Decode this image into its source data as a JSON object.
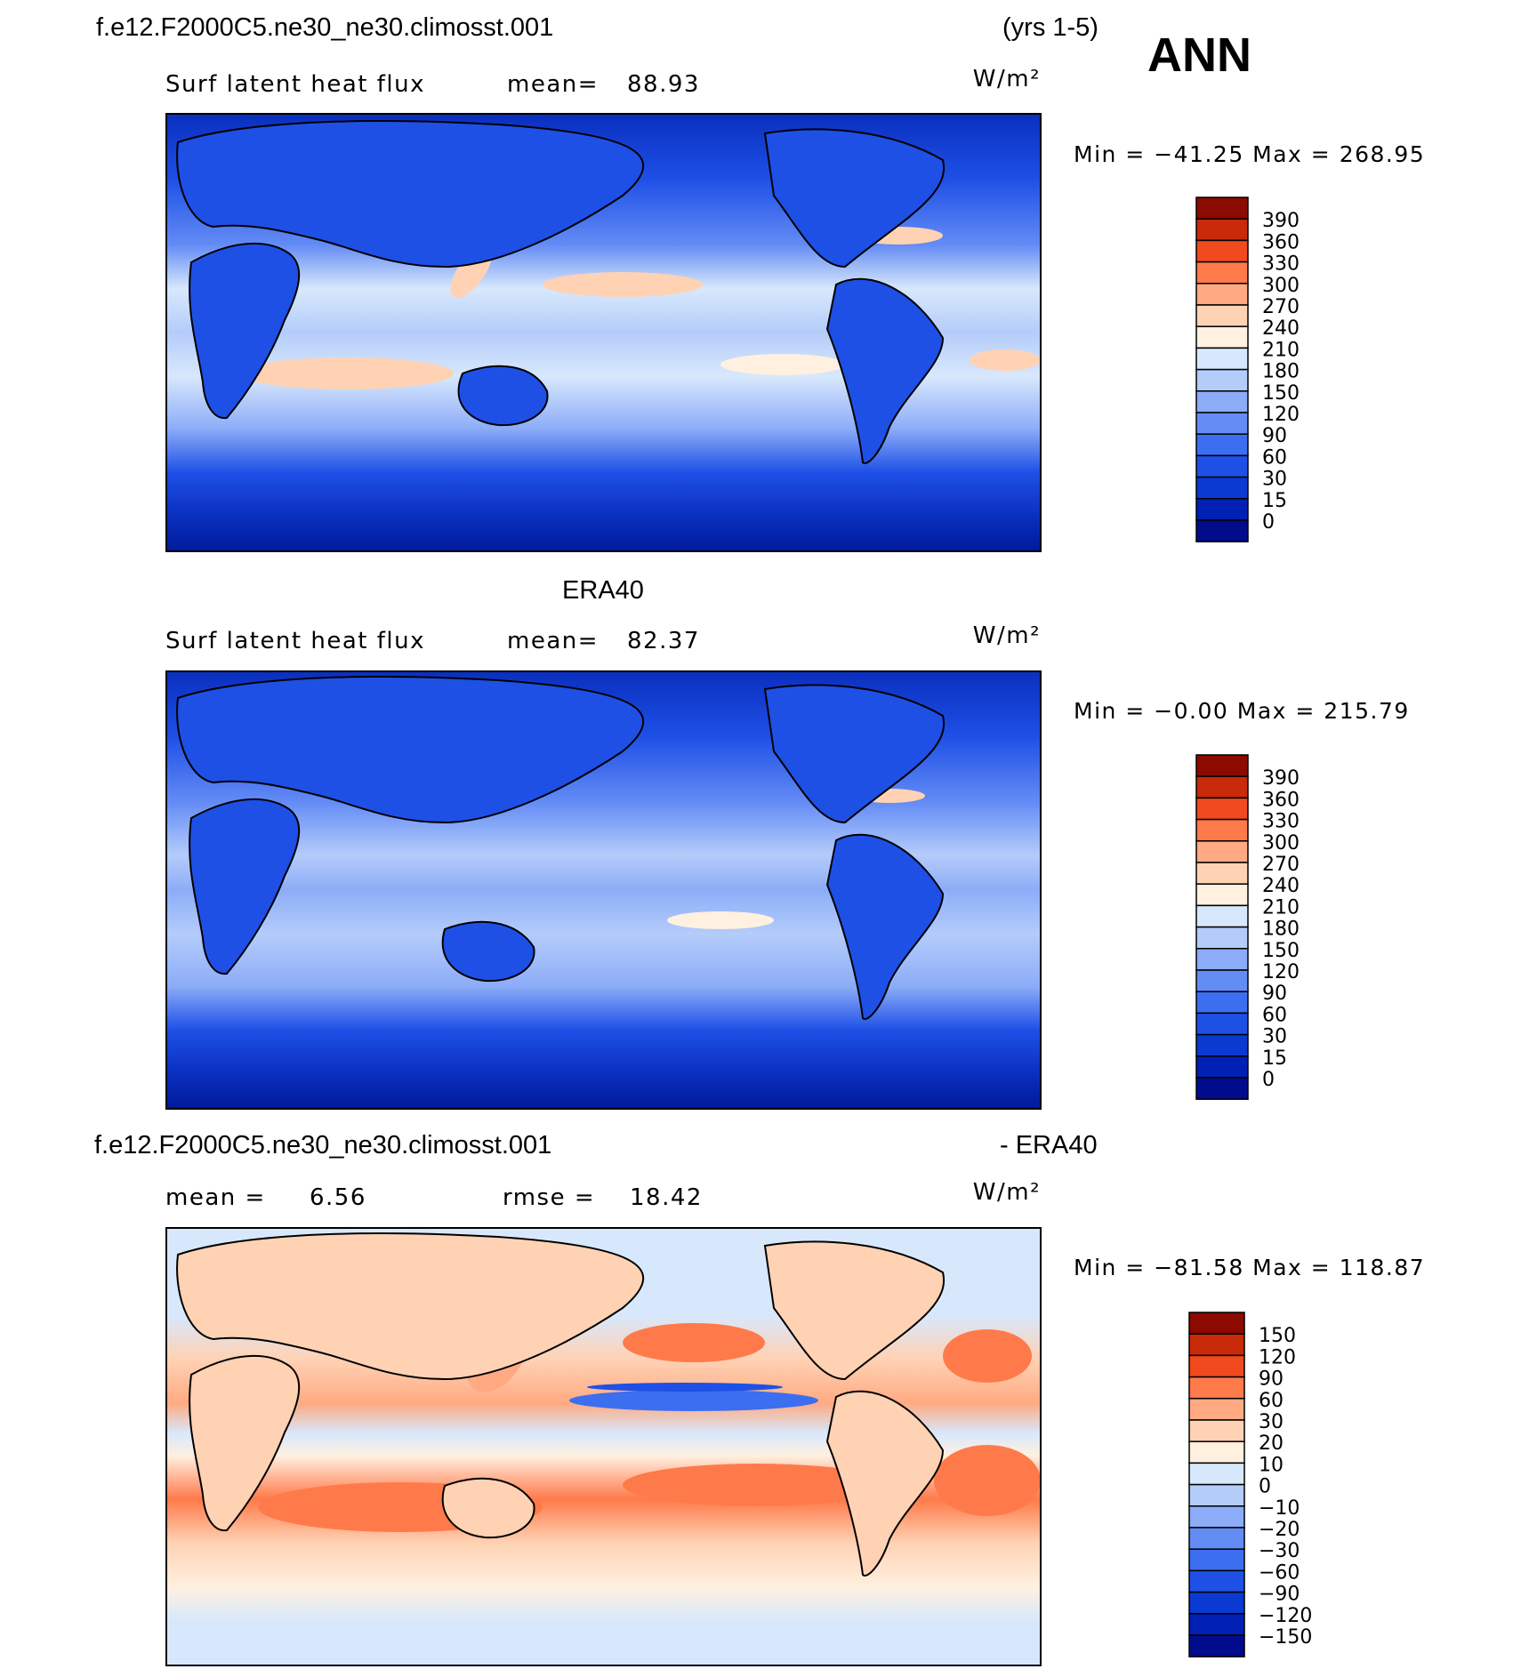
{
  "header": {
    "case_name": "f.e12.F2000C5.ne30_ne30.climosst.001",
    "years": "(yrs 1-5)",
    "season": "ANN"
  },
  "panels": [
    {
      "title_center": "",
      "left_label": "Surf latent heat flux",
      "stat1_label": "mean=",
      "stat1_value": "88.93",
      "stat2_label": "",
      "stat2_value": "",
      "units": "W/m²",
      "min_max": "Min = −41.25 Max = 268.95"
    },
    {
      "title_center": "ERA40",
      "left_label": "Surf latent heat flux",
      "stat1_label": "mean=",
      "stat1_value": "82.37",
      "stat2_label": "",
      "stat2_value": "",
      "units": "W/m²",
      "min_max": "Min =  −0.00 Max = 215.79"
    },
    {
      "title_left": "f.e12.F2000C5.ne30_ne30.climosst.001",
      "title_right": "- ERA40",
      "left_label": "",
      "stat1_label": "mean =",
      "stat1_value": "6.56",
      "stat2_label": "rmse =",
      "stat2_value": "18.42",
      "units": "W/m²",
      "min_max": "Min = −81.58 Max = 118.87"
    }
  ],
  "chart_data": [
    {
      "type": "heatmap",
      "field": "Surf latent heat flux",
      "mean": 88.93,
      "min": -41.25,
      "max": 268.95,
      "colorbar_levels": [
        "0",
        "15",
        "30",
        "60",
        "90",
        "120",
        "150",
        "180",
        "210",
        "240",
        "270",
        "300",
        "330",
        "360",
        "390"
      ],
      "colors": [
        "#000c8c",
        "#0020b4",
        "#0a3ad2",
        "#1e50e6",
        "#3c6ef0",
        "#648cf5",
        "#8cacf8",
        "#b4ccfa",
        "#d8e8fc",
        "#fff0e0",
        "#ffd2b4",
        "#ffaa82",
        "#ff7a4a",
        "#f04a1e",
        "#c82a0a",
        "#8c0a00"
      ]
    },
    {
      "type": "heatmap",
      "field": "Surf latent heat flux",
      "mean": 82.37,
      "min": -0.0,
      "max": 215.79,
      "colorbar_levels": [
        "0",
        "15",
        "30",
        "60",
        "90",
        "120",
        "150",
        "180",
        "210",
        "240",
        "270",
        "300",
        "330",
        "360",
        "390"
      ],
      "colors": [
        "#000c8c",
        "#0020b4",
        "#0a3ad2",
        "#1e50e6",
        "#3c6ef0",
        "#648cf5",
        "#8cacf8",
        "#b4ccfa",
        "#d8e8fc",
        "#fff0e0",
        "#ffd2b4",
        "#ffaa82",
        "#ff7a4a",
        "#f04a1e",
        "#c82a0a",
        "#8c0a00"
      ]
    },
    {
      "type": "heatmap",
      "field": "difference",
      "mean": 6.56,
      "rmse": 18.42,
      "min": -81.58,
      "max": 118.87,
      "colorbar_levels": [
        "−150",
        "−120",
        "−90",
        "−60",
        "−30",
        "−20",
        "−10",
        "0",
        "10",
        "20",
        "30",
        "60",
        "90",
        "120",
        "150"
      ],
      "colors": [
        "#000c8c",
        "#0020b4",
        "#0a3ad2",
        "#1e50e6",
        "#3c6ef0",
        "#648cf5",
        "#8cacf8",
        "#b4ccfa",
        "#d8e8fc",
        "#fff0e0",
        "#ffd2b4",
        "#ffaa82",
        "#ff7a4a",
        "#f04a1e",
        "#c82a0a",
        "#8c0a00"
      ]
    }
  ]
}
